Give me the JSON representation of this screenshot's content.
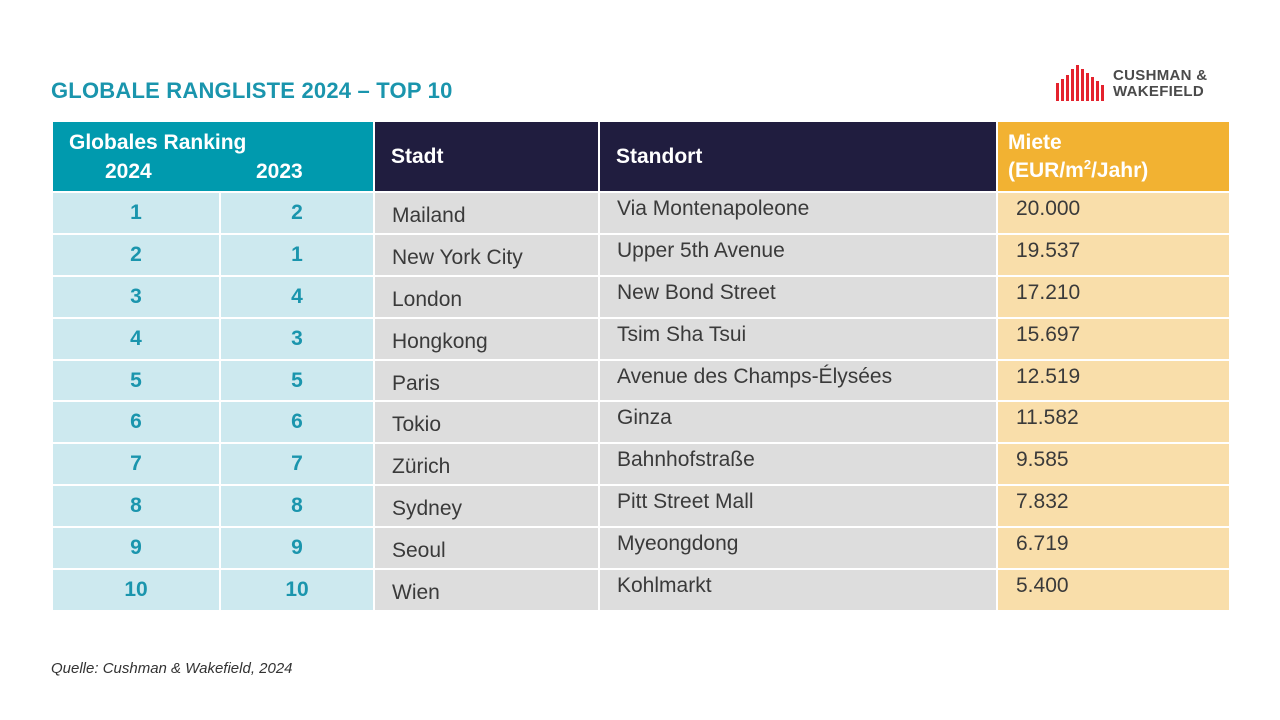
{
  "title": "GLOBALE RANGLISTE 2024 – TOP 10",
  "logo": {
    "line1": "CUSHMAN &",
    "line2": "WAKEFIELD",
    "color": "#e4222d"
  },
  "table": {
    "header": {
      "ranking": "Globales Ranking",
      "year1": "2024",
      "year2": "2023",
      "city": "Stadt",
      "location": "Standort",
      "rent_line1": "Miete",
      "rent_line2_pre": "(EUR/m",
      "rent_sup": "2",
      "rent_line2_post": "/Jahr)"
    },
    "rows": [
      {
        "r2024": "1",
        "r2023": "2",
        "city": "Mailand",
        "location": "Via Montenapoleone",
        "rent": "20.000"
      },
      {
        "r2024": "2",
        "r2023": "1",
        "city": "New York City",
        "location": "Upper 5th Avenue",
        "rent": "19.537"
      },
      {
        "r2024": "3",
        "r2023": "4",
        "city": "London",
        "location": "New Bond Street",
        "rent": "17.210"
      },
      {
        "r2024": "4",
        "r2023": "3",
        "city": "Hongkong",
        "location": "Tsim Sha Tsui",
        "rent": "15.697"
      },
      {
        "r2024": "5",
        "r2023": "5",
        "city": "Paris",
        "location": "Avenue des Champs-Élysées",
        "rent": "12.519"
      },
      {
        "r2024": "6",
        "r2023": "6",
        "city": "Tokio",
        "location": "Ginza",
        "rent": "11.582"
      },
      {
        "r2024": "7",
        "r2023": "7",
        "city": "Zürich",
        "location": "Bahnhofstraße",
        "rent": "9.585"
      },
      {
        "r2024": "8",
        "r2023": "8",
        "city": "Sydney",
        "location": "Pitt Street Mall",
        "rent": "7.832"
      },
      {
        "r2024": "9",
        "r2023": "9",
        "city": "Seoul",
        "location": "Myeongdong",
        "rent": "6.719"
      },
      {
        "r2024": "10",
        "r2023": "10",
        "city": "Wien",
        "location": "Kohlmarkt",
        "rent": "5.400"
      }
    ]
  },
  "source": "Quelle:  Cushman & Wakefield, 2024"
}
